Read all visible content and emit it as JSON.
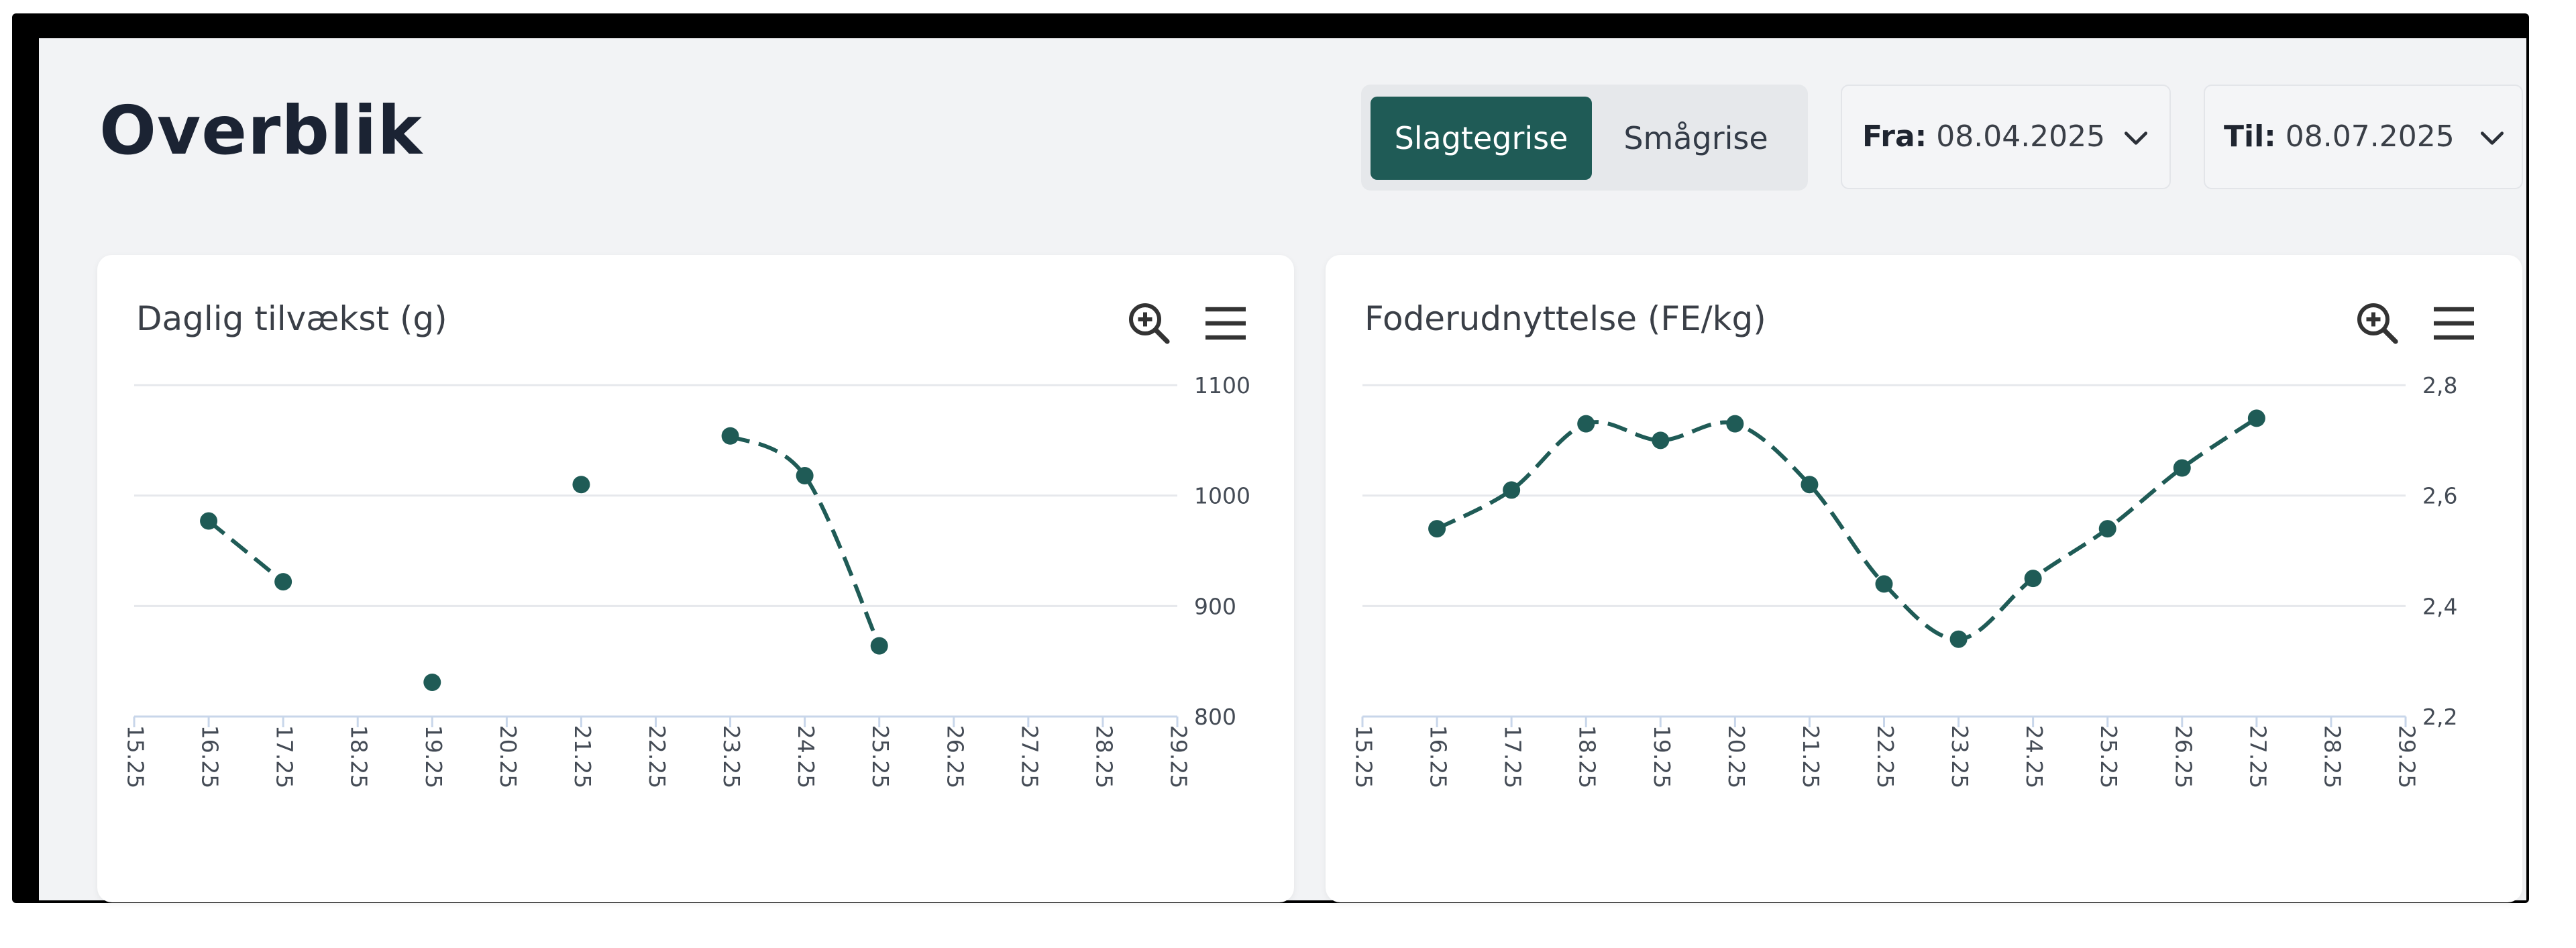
{
  "header": {
    "title": "Overblik",
    "segments": {
      "active": "Slagtegrise",
      "inactive": "Smågrise"
    },
    "date_from": {
      "label": "Fra:",
      "value": "08.04.2025"
    },
    "date_to": {
      "label": "Til:",
      "value": "08.07.2025"
    },
    "accent_color": "#1f5b56"
  },
  "icons": {
    "zoom": "zoom-in-icon",
    "menu": "hamburger-menu-icon",
    "dropdown": "chevron-down-icon"
  },
  "chart_data": [
    {
      "type": "line",
      "title": "Daglig tilvækst (g)",
      "x": [
        "15.25",
        "16.25",
        "17.25",
        "18.25",
        "19.25",
        "20.25",
        "21.25",
        "22.25",
        "23.25",
        "24.25",
        "25.25",
        "26.25",
        "27.25",
        "28.25",
        "29.25"
      ],
      "series": [
        {
          "values": [
            null,
            977,
            922,
            null,
            831,
            null,
            1010,
            null,
            1054,
            1018,
            864,
            null,
            null,
            null,
            null
          ]
        }
      ],
      "ylim": [
        800,
        1100
      ],
      "yticks": [
        800,
        900,
        1000,
        1100
      ],
      "ytick_labels": [
        "800",
        "900",
        "1000",
        "1100"
      ],
      "grid": true,
      "line_style": "dashed-smooth",
      "color": "#1f5b56"
    },
    {
      "type": "line",
      "title": "Foderudnyttelse (FE/kg)",
      "x": [
        "15.25",
        "16.25",
        "17.25",
        "18.25",
        "19.25",
        "20.25",
        "21.25",
        "22.25",
        "23.25",
        "24.25",
        "25.25",
        "26.25",
        "27.25",
        "28.25",
        "29.25"
      ],
      "series": [
        {
          "values": [
            null,
            2.54,
            2.61,
            2.73,
            2.7,
            2.73,
            2.62,
            2.44,
            2.34,
            2.45,
            2.54,
            2.65,
            2.74,
            null,
            null
          ]
        }
      ],
      "ylim": [
        2.2,
        2.8
      ],
      "yticks": [
        2.2,
        2.4,
        2.6,
        2.8
      ],
      "ytick_labels": [
        "2,2",
        "2,4",
        "2,6",
        "2,8"
      ],
      "grid": true,
      "line_style": "dashed-smooth",
      "color": "#1f5b56"
    }
  ]
}
